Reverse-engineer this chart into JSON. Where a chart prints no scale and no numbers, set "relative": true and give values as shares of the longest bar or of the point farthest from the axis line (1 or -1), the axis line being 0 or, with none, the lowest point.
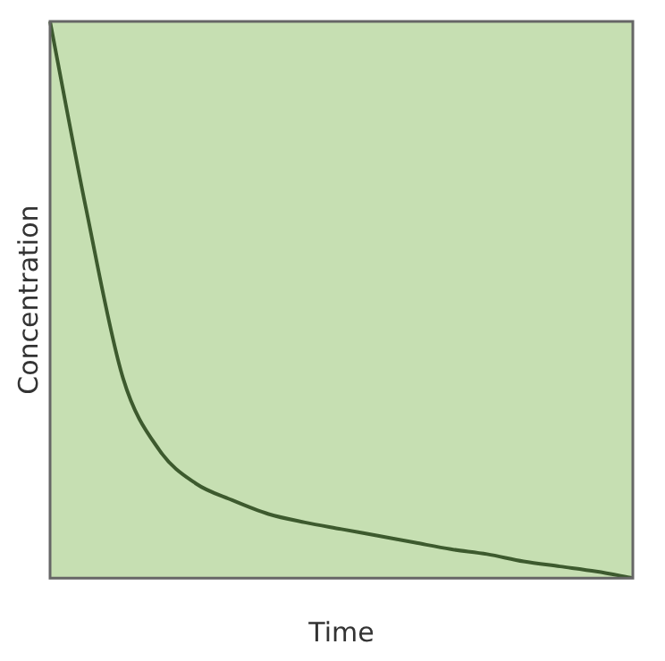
{
  "chart_data": {
    "type": "line",
    "relative": true,
    "xlabel": "Time",
    "ylabel": "Concentration",
    "categories": [
      null,
      null,
      null,
      null,
      null,
      null,
      null,
      null,
      null,
      null,
      null,
      null,
      null,
      null,
      null,
      null,
      null
    ],
    "series": [
      {
        "color": "#3d5a2e",
        "values": [
          1,
          0.66,
          0.36,
          0.23,
          0.17,
          0.14,
          0.115,
          0.1,
          0.088,
          0.076,
          0.064,
          0.052,
          0.043,
          0.03,
          0.021,
          0.012,
          0
        ]
      }
    ],
    "grid": false,
    "legend": false,
    "marker": "none",
    "line_style": "solid"
  }
}
